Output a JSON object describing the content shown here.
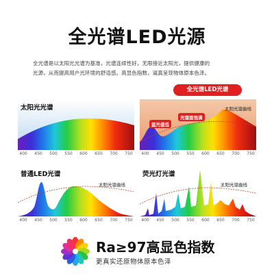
{
  "header": {
    "title": "全光谱LED光源",
    "description_line1": "全光谱是以太阳光光谱为基准，光谱连续性好，无限接近太阳光，提供健康的",
    "description_line2": "光源，从而提高用户光环境的舒适感。高显色指数，逼真呈现物体原本色泽。"
  },
  "panels": {
    "sun": {
      "title": "太阳光光谱"
    },
    "full": {
      "pill": "全光谱LED光谱",
      "curve_label": "太阳光谱曲线",
      "tag_blue": "蓝光值低",
      "tag_saturation": "光谱面饱满"
    },
    "led": {
      "title": "普通LED光谱",
      "curve_label": "太阳光谱曲线"
    },
    "fluor": {
      "title": "荧光灯光谱",
      "curve_label": "太阳光谱曲线"
    }
  },
  "axis_ticks": [
    "400",
    "450",
    "500",
    "550",
    "600",
    "650",
    "700",
    "750"
  ],
  "footer": {
    "main": "Ra≥97高显色指数",
    "sub": "更真实还原物体原本色泽"
  }
}
